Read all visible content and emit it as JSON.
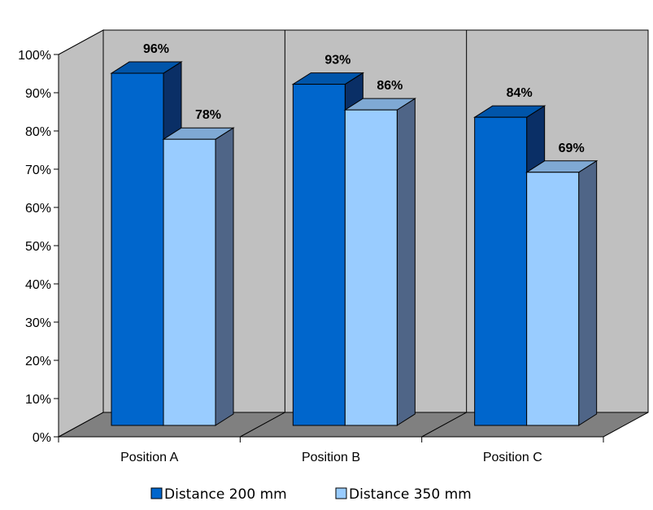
{
  "chart_data": {
    "type": "bar",
    "categories": [
      "Position A",
      "Position B",
      "Position C"
    ],
    "series": [
      {
        "name": "Distance 200 mm",
        "values": [
          96,
          93,
          84
        ],
        "color": "#0066CC"
      },
      {
        "name": "Distance 350 mm",
        "values": [
          78,
          86,
          69
        ],
        "color": "#99CCFF"
      }
    ],
    "data_labels": [
      [
        "96%",
        "93%",
        "84%"
      ],
      [
        "78%",
        "86%",
        "69%"
      ]
    ],
    "y_ticks": [
      "0%",
      "10%",
      "20%",
      "30%",
      "40%",
      "50%",
      "60%",
      "70%",
      "80%",
      "90%",
      "100%"
    ],
    "ylim": [
      0,
      100
    ],
    "title": "",
    "xlabel": "",
    "ylabel": "",
    "grid": true,
    "three_d": true,
    "legend_position": "bottom",
    "colors": {
      "back_wall": "#C0C0C0",
      "floor": "#808080",
      "side_wall": "#C0C0C0"
    }
  }
}
